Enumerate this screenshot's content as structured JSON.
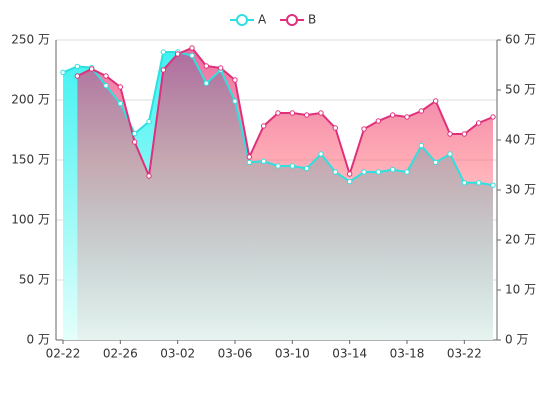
{
  "chart_data": {
    "type": "line",
    "categories": [
      "02-22",
      null,
      null,
      null,
      "02-26",
      null,
      null,
      null,
      "03-02",
      null,
      null,
      null,
      "03-06",
      null,
      null,
      null,
      "03-10",
      null,
      null,
      null,
      "03-14",
      null,
      null,
      null,
      "03-18",
      null,
      null,
      null,
      "03-22",
      null,
      null
    ],
    "series": [
      {
        "name": "A",
        "color": "#2ee0e0",
        "axis": "y",
        "values": [
          223,
          228,
          227,
          212,
          197,
          172,
          182,
          240,
          240,
          237,
          214,
          225,
          199,
          148,
          149,
          145,
          145,
          143,
          155,
          140,
          132,
          140,
          140,
          142,
          140,
          162,
          148,
          155,
          131,
          131,
          129
        ]
      },
      {
        "name": "B",
        "color": "#e0307a",
        "axis": "y2",
        "values": [
          null,
          52.8,
          54.2,
          52.8,
          50.6,
          39.6,
          32.8,
          54,
          57.2,
          58.4,
          54.8,
          54.4,
          52,
          36.6,
          42.8,
          45.4,
          45.4,
          45,
          45.4,
          42.4,
          33.2,
          42.2,
          43.8,
          45,
          44.6,
          45.8,
          47.8,
          41.2,
          41.2,
          43.4,
          44.6
        ]
      }
    ],
    "ylim": [
      0,
      250
    ],
    "yticks": [
      {
        "value": 0,
        "label": "0 万"
      },
      {
        "value": 50,
        "label": "50 万"
      },
      {
        "value": 100,
        "label": "100 万"
      },
      {
        "value": 150,
        "label": "150 万"
      },
      {
        "value": 200,
        "label": "200 万"
      },
      {
        "value": 250,
        "label": "250 万"
      }
    ],
    "y2lim": [
      0,
      60
    ],
    "y2ticks": [
      {
        "value": 0,
        "label": "0 万"
      },
      {
        "value": 10,
        "label": "10 万"
      },
      {
        "value": 20,
        "label": "20 万"
      },
      {
        "value": 30,
        "label": "30 万"
      },
      {
        "value": 40,
        "label": "40 万"
      },
      {
        "value": 50,
        "label": "50 万"
      },
      {
        "value": 60,
        "label": "60 万"
      }
    ],
    "grid": true,
    "legend": "top"
  }
}
